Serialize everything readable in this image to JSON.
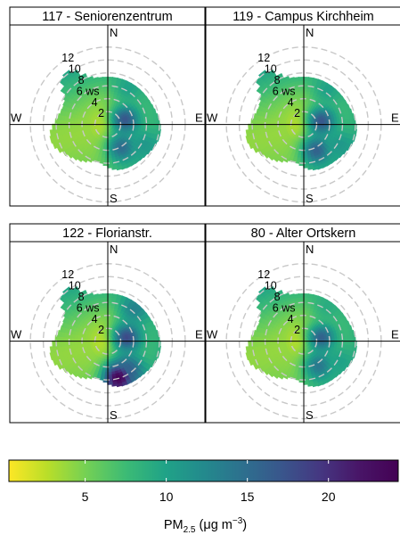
{
  "chart_data": {
    "type": "polar_heatmap",
    "colorbar": {
      "ticks": [
        5,
        10,
        15,
        20
      ],
      "range": [
        0.3,
        24.3
      ],
      "palette": [
        "#FDE725",
        "#B8DE29",
        "#73D055",
        "#3CBB75",
        "#20A387",
        "#238A8D",
        "#2D708E",
        "#39568C",
        "#453781",
        "#481567",
        "#440154"
      ],
      "label_main": "PM",
      "label_sub": "2.5",
      "label_unit": " (μg m",
      "label_exp": "−3",
      "label_close": ")"
    },
    "polar_axis": {
      "directions": [
        "N",
        "E",
        "S",
        "W"
      ],
      "ring_speeds": [
        2,
        4,
        6,
        8,
        10,
        12
      ],
      "ring_labels": [
        "2",
        "4",
        "6 ws",
        "8",
        "10",
        "12"
      ],
      "max_speed": 14.5
    },
    "panels": [
      {
        "title": "117 - Seniorenzentrum",
        "hotspots": [
          {
            "angle": 75,
            "speed": 2.8,
            "value": 17
          },
          {
            "angle": 150,
            "speed": 4.2,
            "value": 15
          },
          {
            "angle": 120,
            "speed": 6.5,
            "value": 11
          },
          {
            "angle": 30,
            "speed": 6.5,
            "value": 10
          }
        ]
      },
      {
        "title": "119 - Campus Kirchheim",
        "hotspots": [
          {
            "angle": 80,
            "speed": 2.8,
            "value": 17
          },
          {
            "angle": 155,
            "speed": 4.5,
            "value": 16
          },
          {
            "angle": 120,
            "speed": 6.5,
            "value": 11
          },
          {
            "angle": 35,
            "speed": 6.5,
            "value": 10
          }
        ]
      },
      {
        "title": "122 - Florianstr.",
        "hotspots": [
          {
            "angle": 80,
            "speed": 3.0,
            "value": 18
          },
          {
            "angle": 165,
            "speed": 6.0,
            "value": 24
          },
          {
            "angle": 145,
            "speed": 5.5,
            "value": 16
          },
          {
            "angle": 40,
            "speed": 6.5,
            "value": 13
          }
        ]
      },
      {
        "title": "80 - Alter Ortskern",
        "hotspots": [
          {
            "angle": 80,
            "speed": 2.8,
            "value": 16
          },
          {
            "angle": 150,
            "speed": 4.5,
            "value": 14
          },
          {
            "angle": 120,
            "speed": 6.5,
            "value": 10
          },
          {
            "angle": 35,
            "speed": 6.5,
            "value": 9
          }
        ]
      }
    ]
  }
}
